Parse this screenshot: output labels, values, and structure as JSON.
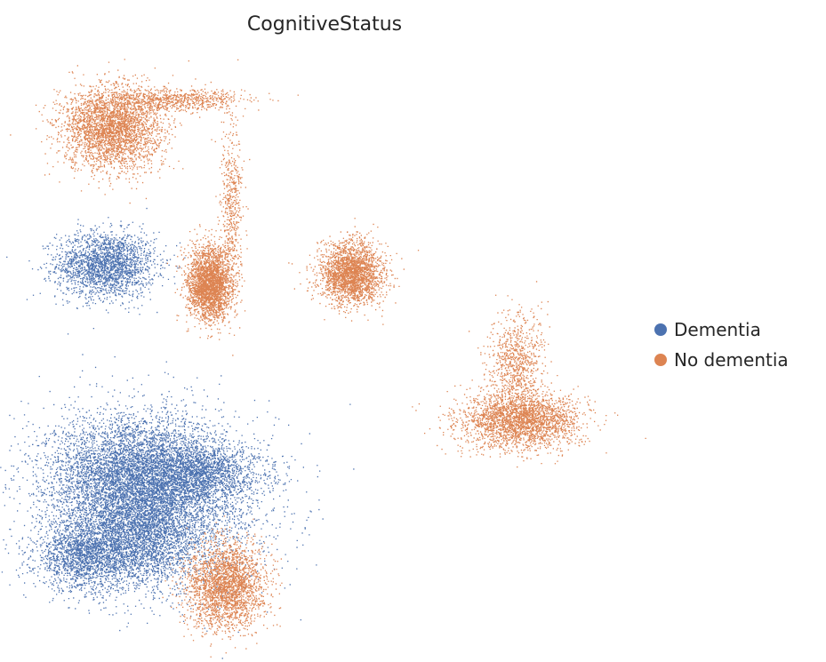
{
  "chart_data": {
    "type": "scatter",
    "title": "CognitiveStatus",
    "xlabel": "",
    "ylabel": "",
    "axes_visible": false,
    "grid": false,
    "legend_position": "right",
    "series": [
      {
        "name": "Dementia",
        "color": "#4c72b0",
        "clusters": [
          {
            "cx": -3.8,
            "cy": 3.0,
            "sx": 0.45,
            "sy": 0.35,
            "n": 2200
          },
          {
            "cx": -4.2,
            "cy": -3.2,
            "sx": 0.45,
            "sy": 0.35,
            "n": 1800
          },
          {
            "cx": -3.3,
            "cy": -1.6,
            "sx": 0.8,
            "sy": 0.7,
            "n": 5500
          },
          {
            "cx": -2.1,
            "cy": -1.4,
            "sx": 0.55,
            "sy": 0.3,
            "n": 1600
          },
          {
            "cx": -3.2,
            "cy": -2.9,
            "sx": 0.5,
            "sy": 0.5,
            "n": 1800
          },
          {
            "cx": -2.7,
            "cy": -2.1,
            "sx": 1.0,
            "sy": 0.9,
            "n": 3000
          }
        ]
      },
      {
        "name": "No dementia",
        "color": "#dd8452",
        "clusters": [
          {
            "cx": -3.7,
            "cy": 5.9,
            "sx": 0.45,
            "sy": 0.45,
            "n": 3200
          },
          {
            "cx": -2.5,
            "cy": 6.5,
            "sx": 0.6,
            "sy": 0.12,
            "n": 700
          },
          {
            "cx": -1.9,
            "cy": 2.6,
            "sx": 0.2,
            "sy": 0.38,
            "n": 2800
          },
          {
            "cx": -1.5,
            "cy": 4.2,
            "sx": 0.1,
            "sy": 0.9,
            "n": 500
          },
          {
            "cx": 0.7,
            "cy": 2.8,
            "sx": 0.28,
            "sy": 0.33,
            "n": 2400
          },
          {
            "cx": 3.8,
            "cy": -0.3,
            "sx": 0.55,
            "sy": 0.3,
            "n": 2600
          },
          {
            "cx": 3.7,
            "cy": 0.9,
            "sx": 0.25,
            "sy": 0.5,
            "n": 800
          },
          {
            "cx": -1.6,
            "cy": -3.8,
            "sx": 0.35,
            "sy": 0.45,
            "n": 2600
          }
        ]
      }
    ],
    "xlim": [
      -5.0,
      5.5
    ],
    "ylim": [
      -4.6,
      7.2
    ]
  }
}
